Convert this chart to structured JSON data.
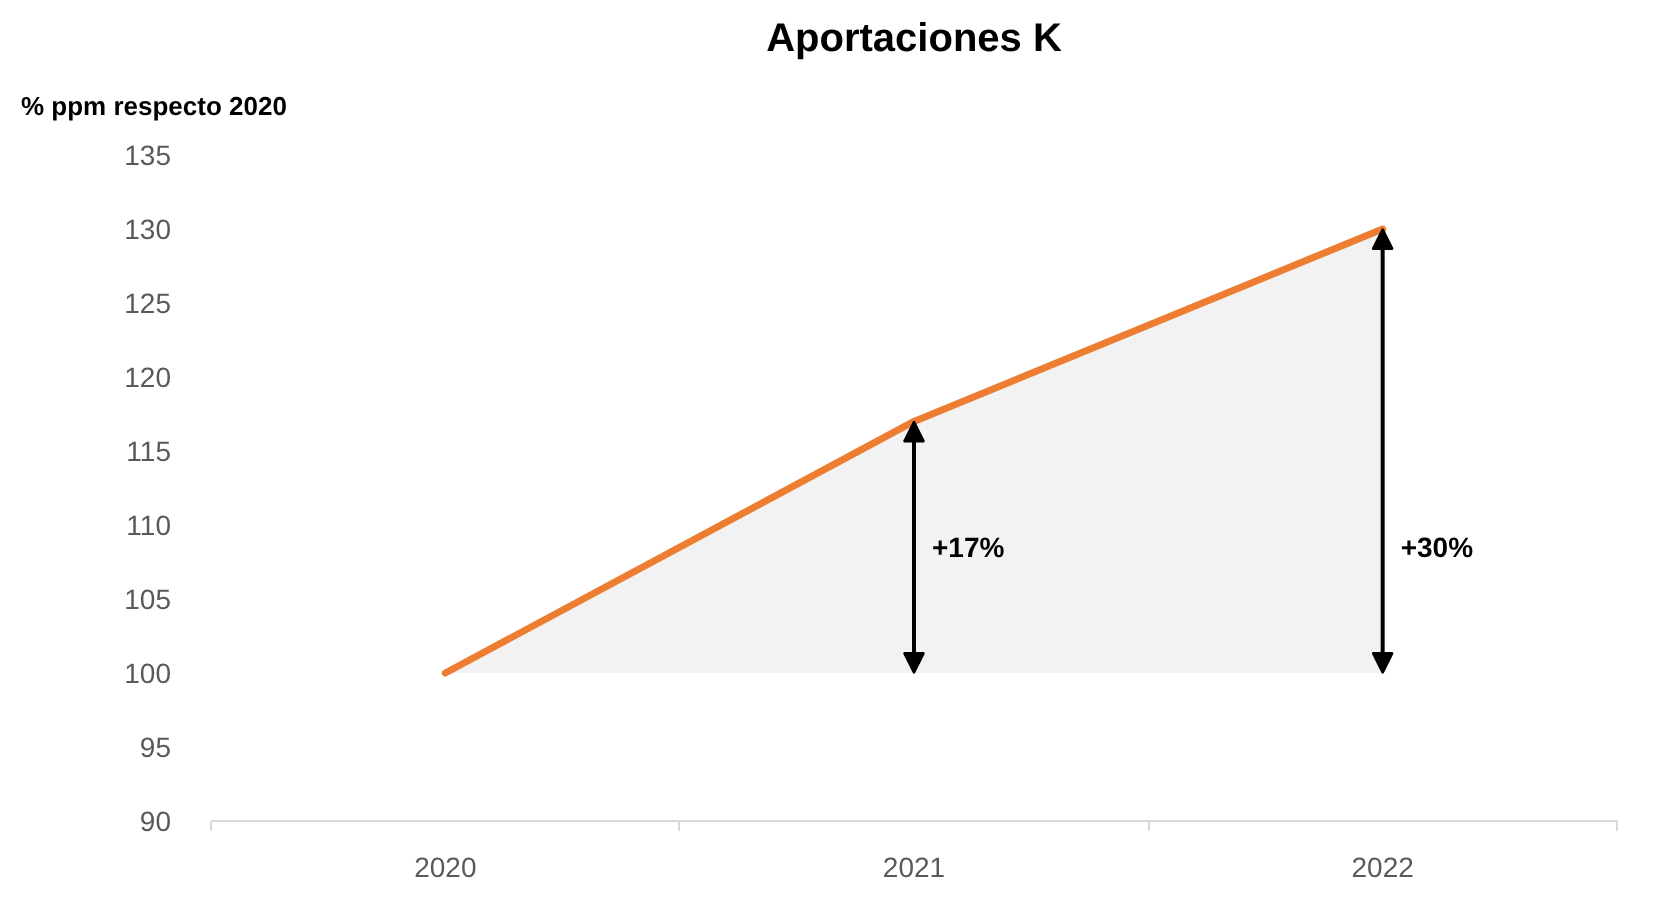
{
  "chart_data": {
    "type": "line",
    "title": "Aportaciones K",
    "ylabel": "% ppm respecto 2020",
    "categories": [
      "2020",
      "2021",
      "2022"
    ],
    "series": [
      {
        "color": "#ed7d31",
        "values": [
          100,
          117,
          130
        ],
        "lower": [
          100,
          100,
          100
        ],
        "upper": [
          100,
          117,
          130
        ]
      }
    ],
    "ylim": [
      90,
      135
    ],
    "yticks": [
      90,
      95,
      100,
      105,
      110,
      115,
      120,
      125,
      130,
      135
    ],
    "annotations": [
      "+17%",
      "+30%"
    ],
    "grid": false
  }
}
